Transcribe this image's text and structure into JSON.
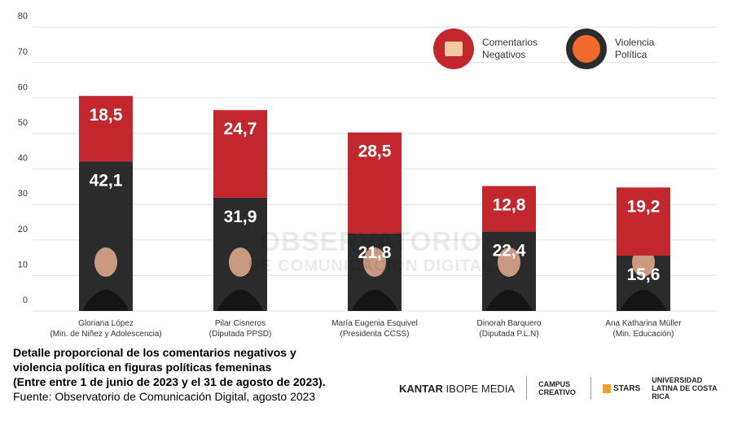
{
  "chart_data": {
    "type": "bar",
    "stacked": true,
    "title": "",
    "xlabel": "",
    "ylabel": "",
    "ylim": [
      0,
      80
    ],
    "yticks": [
      0,
      10,
      20,
      30,
      40,
      50,
      60,
      70,
      80
    ],
    "grid": true,
    "legend_position": "top-right",
    "categories": [
      {
        "name": "Gloriana López",
        "role": "(Min. de Niñez y Adolescencia)"
      },
      {
        "name": "Pilar Cisneros",
        "role": "(Diputada PPSD)"
      },
      {
        "name": "María Eugenia Esquivel",
        "role": "(Presidenta CCSS)"
      },
      {
        "name": "Dinorah Barquero",
        "role": "(Diputada P.L.N)"
      },
      {
        "name": "Ana Katharina Müller",
        "role": "(Min. Educación)"
      }
    ],
    "series": [
      {
        "name": "Violencia Política",
        "color": "#2b2b2b",
        "values": [
          42.1,
          31.9,
          21.8,
          22.4,
          15.6
        ],
        "labels": [
          "42,1",
          "31,9",
          "21,8",
          "22,4",
          "15,6"
        ]
      },
      {
        "name": "Comentarios Negativos",
        "color": "#c1272d",
        "values": [
          18.5,
          24.7,
          28.5,
          12.8,
          19.2
        ],
        "labels": [
          "18,5",
          "24,7",
          "28,5",
          "12,8",
          "19,2"
        ]
      }
    ]
  },
  "legend": {
    "negativos": {
      "line1": "Comentarios",
      "line2": "Negativos",
      "icon": "thumbs-down-comment-icon",
      "color": "#c1272d"
    },
    "violencia": {
      "line1": "Violencia",
      "line2": "Política",
      "icon": "angry-face-icon",
      "color": "#f26a2b"
    }
  },
  "caption": {
    "line1": "Detalle proporcional de los comentarios negativos y",
    "line2": "violencia política en figuras políticas femeninas",
    "line3": "(Entre entre 1 de junio de 2023 y el 31 de agosto de 2023).",
    "source": "Fuente: Observatorio de Comunicación Digital, agosto 2023"
  },
  "watermark": {
    "line1": "OBSERVATORIO",
    "line2": "DE COMUNICACIÓN DIGITAL"
  },
  "logos": {
    "kantar_bold": "KANTAR",
    "kantar_rest": "IBOPE MEDIA",
    "campus": "CAMPUS CREATIVO",
    "stars": "STARS",
    "ulatina": "UNIVERSIDAD LATINA DE COSTA RICA"
  }
}
